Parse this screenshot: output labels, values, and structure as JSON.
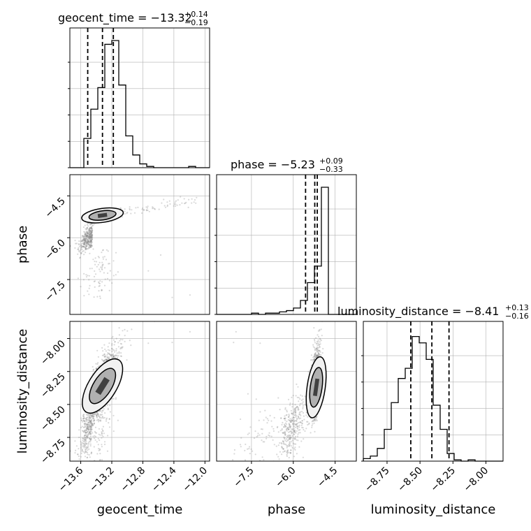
{
  "chart_data": {
    "type": "corner",
    "parameters": [
      {
        "name": "geocent_time",
        "axis_label": "geocent_time",
        "range": [
          -13.74,
          -11.94
        ],
        "ticks": [
          -13.6,
          -13.2,
          -12.8,
          -12.4,
          -12.0
        ],
        "tick_labels": [
          "−13.6",
          "−13.2",
          "−12.8",
          "−12.4",
          "−12.0"
        ],
        "title_text": "geocent_time = −13.32",
        "title_plus": "+0.14",
        "title_minus": "−0.19",
        "quantiles": [
          -13.51,
          -13.32,
          -13.18
        ],
        "hist": [
          0,
          0,
          0.23,
          0.46,
          0.63,
          0.97,
          1.0,
          0.65,
          0.25,
          0.1,
          0.03,
          0.01,
          0,
          0,
          0,
          0,
          0,
          0.01,
          0,
          0
        ]
      },
      {
        "name": "phase",
        "axis_label": "phase",
        "range": [
          -8.75,
          -3.74
        ],
        "ticks": [
          -7.5,
          -6.0,
          -4.5
        ],
        "tick_labels": [
          "−7.5",
          "−6.0",
          "−4.5"
        ],
        "title_text": "phase = −5.23",
        "title_plus": "+0.09",
        "title_minus": "−0.33",
        "quantiles": [
          -5.56,
          -5.23,
          -5.14
        ],
        "hist": [
          0,
          0,
          0,
          0,
          0,
          0.01,
          0,
          0.01,
          0.01,
          0.02,
          0.03,
          0.05,
          0.11,
          0.25,
          0.38,
          1.0,
          0,
          0,
          0,
          0
        ]
      },
      {
        "name": "luminosity_distance",
        "axis_label": "luminosity_distance",
        "range": [
          -8.93,
          -7.87
        ],
        "ticks": [
          -8.75,
          -8.5,
          -8.25,
          -8.0
        ],
        "tick_labels": [
          "−8.75",
          "−8.50",
          "−8.25",
          "−8.00"
        ],
        "title_text": "luminosity_distance = −8.41",
        "title_plus": "+0.13",
        "title_minus": "−0.16",
        "quantiles": [
          -8.57,
          -8.41,
          -8.28
        ],
        "hist": [
          0.02,
          0.04,
          0.1,
          0.25,
          0.46,
          0.65,
          0.73,
          0.98,
          0.93,
          0.8,
          0.44,
          0.25,
          0.06,
          0.01,
          0,
          0.01,
          0,
          0,
          0,
          0
        ]
      }
    ],
    "scatter": [
      {
        "x_param": "geocent_time",
        "y_param": "phase",
        "peak": [
          -13.32,
          -5.2
        ]
      },
      {
        "x_param": "geocent_time",
        "y_param": "luminosity_distance",
        "peak": [
          -13.32,
          -8.36
        ]
      },
      {
        "x_param": "phase",
        "y_param": "luminosity_distance",
        "peak": [
          -5.18,
          -8.37
        ]
      }
    ],
    "grid": true,
    "colors": {
      "histogram": "#000000",
      "quantile": "#000000",
      "points": "#808080",
      "contour_fill_light": "#f1f1f1",
      "contour_fill_mid": "#b0b0b0",
      "contour_fill_dark": "#404040",
      "grid": "#b0b0b0"
    }
  }
}
